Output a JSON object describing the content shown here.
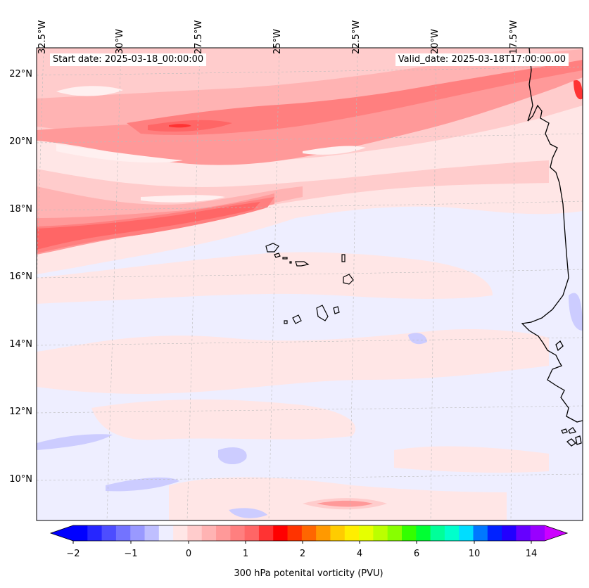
{
  "header": {
    "start_date": "Start date: 2025-03-18_00:00:00",
    "valid_date": "Valid_date: 2025-03-18T17:00:00.00"
  },
  "longitude_labels": [
    "32.5°W",
    "30°W",
    "27.5°W",
    "25°W",
    "22.5°W",
    "20°W",
    "17.5°W"
  ],
  "latitude_labels": [
    "22°N",
    "20°N",
    "18°N",
    "16°N",
    "14°N",
    "12°N",
    "10°N"
  ],
  "colorbar": {
    "title": "300 hPa potenital vorticity (PVU)",
    "ticks": [
      "−2",
      "−1",
      "0",
      "1",
      "2",
      "4",
      "6",
      "10",
      "14"
    ],
    "colors": [
      "#0000ff",
      "#2626ff",
      "#4d4dff",
      "#7373ff",
      "#9999ff",
      "#bfbfff",
      "#eeeeff",
      "#ffe6e6",
      "#ffcccc",
      "#ffb3b3",
      "#ff9999",
      "#ff7f7f",
      "#ff6666",
      "#ff3333",
      "#ff0000",
      "#ff3300",
      "#ff6600",
      "#ff9900",
      "#ffcc00",
      "#ffee00",
      "#e6ff00",
      "#bbff00",
      "#88ff00",
      "#33ff00",
      "#00ff33",
      "#00ff99",
      "#00ffcc",
      "#00ddff",
      "#0077ff",
      "#0022ff",
      "#2200ff",
      "#6600ff",
      "#9900ff"
    ],
    "under_color": "#0000ff",
    "over_color": "#cc00ff"
  },
  "map": {
    "background_color": "#eeeeff",
    "coastline_color": "#000000",
    "gridline_color": "#bbbbbb"
  }
}
